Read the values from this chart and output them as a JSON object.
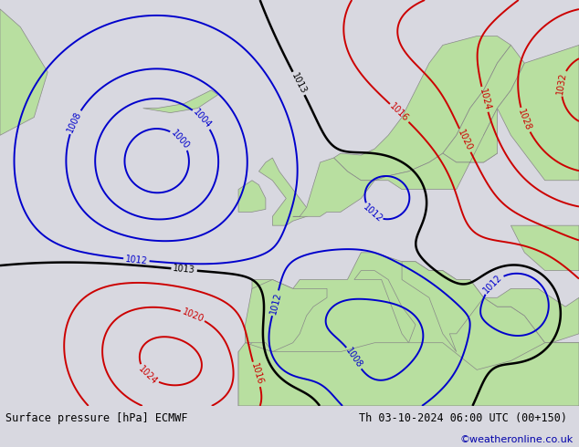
{
  "title_left": "Surface pressure [hPa] ECMWF",
  "title_right": "Th 03-10-2024 06:00 UTC (00+150)",
  "credit": "©weatheronline.co.uk",
  "sea_color": "#e8e8ee",
  "land_color": "#b8dfa0",
  "coast_color": "#888888",
  "footer_bg": "#d8d8e0",
  "figsize": [
    6.34,
    4.9
  ],
  "dpi": 100,
  "xlim": [
    -45,
    40
  ],
  "ylim": [
    30,
    75
  ]
}
